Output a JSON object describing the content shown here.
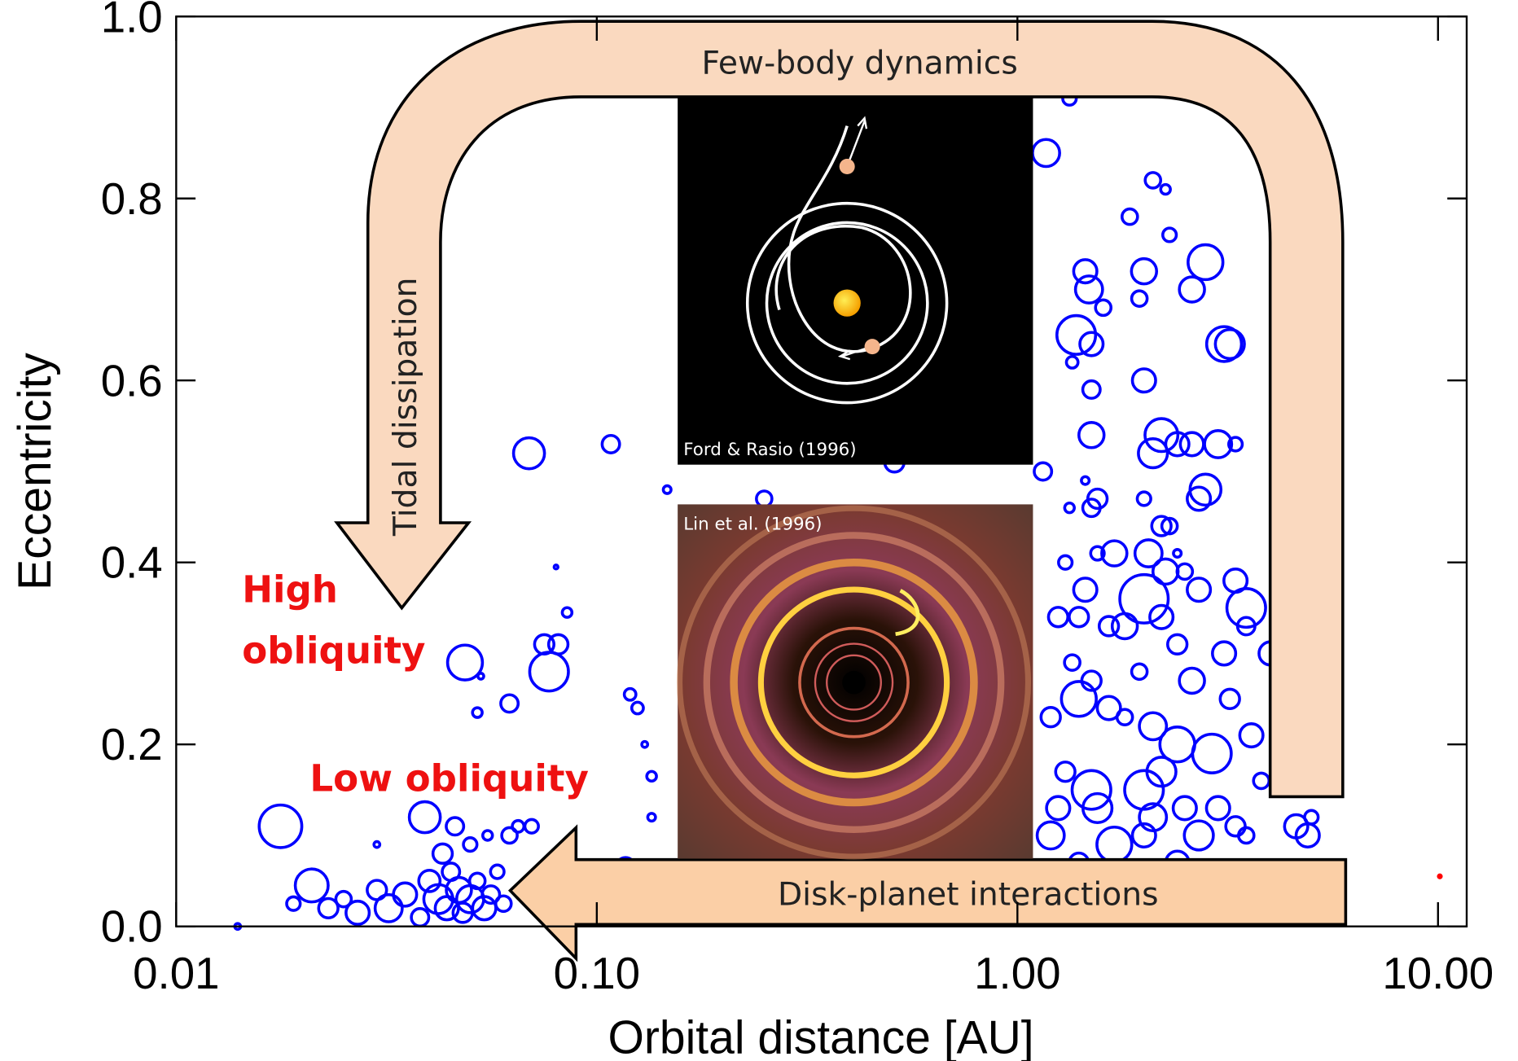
{
  "chart_data": {
    "type": "scatter",
    "xlabel": "Orbital distance [AU]",
    "ylabel": "Eccentricity",
    "xscale": "log",
    "xlim": [
      0.01,
      11.7
    ],
    "ylim": [
      0,
      1
    ],
    "xticks": [
      0.01,
      {
        "value": 0.1,
        "label": "0.10"
      },
      {
        "value": 1,
        "label": "1.00"
      },
      {
        "value": 10,
        "label": "10.00"
      }
    ],
    "yticks": [
      {
        "value": 0,
        "label": "0.0"
      },
      0.2,
      0.4,
      0.6,
      0.8,
      {
        "value": 1,
        "label": "1.0"
      }
    ],
    "series": [
      {
        "color": "#0000ff",
        "x": [
          0.0177,
          0.021,
          0.019,
          0.023,
          0.025,
          0.027,
          0.03,
          0.032,
          0.035,
          0.038,
          0.04,
          0.042,
          0.044,
          0.045,
          0.047,
          0.048,
          0.05,
          0.052,
          0.054,
          0.056,
          0.058,
          0.06,
          0.043,
          0.05,
          0.046,
          0.055,
          0.065,
          0.07,
          0.062,
          0.039,
          0.03,
          0.014,
          0.0486,
          0.052,
          0.053,
          0.077,
          0.075,
          0.081,
          0.062,
          0.085,
          0.08,
          0.069,
          0.108,
          0.147,
          0.12,
          0.125,
          0.13,
          0.135,
          0.135,
          0.117,
          0.25,
          0.51,
          1.17,
          1.33,
          2.1,
          2.25,
          1.85,
          2.3,
          2.0,
          2.8,
          2.6,
          1.6,
          1.95,
          1.45,
          1.48,
          1.38,
          1.5,
          1.35,
          1.5,
          2.0,
          3.1,
          3.2,
          1.5,
          2.2,
          2.4,
          2.6,
          3.0,
          2.1,
          3.3,
          1.15,
          1.45,
          1.55,
          1.5,
          2.0,
          2.8,
          2.7,
          1.33,
          2.2,
          2.3,
          1.7,
          1.3,
          1.55,
          2.05,
          2.25,
          2.5,
          2.4,
          3.3,
          1.45,
          2.0,
          1.25,
          1.8,
          2.2,
          1.4,
          2.7,
          3.5,
          3.5,
          1.65,
          1.35,
          1.5,
          1.95,
          2.6,
          2.4,
          3.1,
          1.2,
          1.4,
          1.65,
          1.8,
          2.1,
          2.4,
          2.9,
          3.6,
          3.2,
          1.3,
          1.5,
          1.55,
          1.25,
          2.2,
          2.0,
          2.1,
          2.5,
          2.7,
          3.0,
          3.3,
          1.2,
          1.4,
          1.7,
          2.0,
          2.4,
          3.5,
          1.25,
          1.45,
          2.2,
          4.6,
          4.9,
          5.0,
          3.8,
          4.0,
          4.2
        ],
        "values": [
          0.11,
          0.045,
          0.025,
          0.02,
          0.03,
          0.015,
          0.04,
          0.02,
          0.035,
          0.01,
          0.05,
          0.03,
          0.02,
          0.06,
          0.04,
          0.015,
          0.03,
          0.05,
          0.02,
          0.035,
          0.06,
          0.025,
          0.08,
          0.09,
          0.11,
          0.1,
          0.11,
          0.11,
          0.1,
          0.12,
          0.09,
          0.0,
          0.29,
          0.235,
          0.275,
          0.28,
          0.31,
          0.31,
          0.245,
          0.345,
          0.395,
          0.52,
          0.53,
          0.48,
          0.255,
          0.24,
          0.2,
          0.165,
          0.12,
          0.065,
          0.47,
          0.51,
          0.85,
          0.91,
          0.82,
          0.81,
          0.78,
          0.76,
          0.72,
          0.73,
          0.7,
          0.68,
          0.69,
          0.72,
          0.7,
          0.65,
          0.64,
          0.62,
          0.59,
          0.6,
          0.64,
          0.64,
          0.54,
          0.54,
          0.53,
          0.53,
          0.53,
          0.52,
          0.53,
          0.5,
          0.49,
          0.47,
          0.46,
          0.47,
          0.48,
          0.47,
          0.46,
          0.44,
          0.44,
          0.41,
          0.4,
          0.41,
          0.41,
          0.39,
          0.39,
          0.41,
          0.38,
          0.37,
          0.36,
          0.34,
          0.33,
          0.34,
          0.34,
          0.37,
          0.35,
          0.33,
          0.33,
          0.29,
          0.27,
          0.28,
          0.27,
          0.31,
          0.3,
          0.23,
          0.25,
          0.24,
          0.23,
          0.22,
          0.2,
          0.19,
          0.21,
          0.25,
          0.17,
          0.15,
          0.13,
          0.13,
          0.17,
          0.15,
          0.12,
          0.13,
          0.1,
          0.13,
          0.11,
          0.1,
          0.07,
          0.09,
          0.1,
          0.07,
          0.1,
          0.05,
          0.04,
          0.05,
          0.11,
          0.1,
          0.12,
          0.16,
          0.3,
          0.22
        ],
        "sizes": [
          22,
          17,
          7,
          10,
          8,
          12,
          10,
          14,
          12,
          9,
          11,
          15,
          12,
          9,
          13,
          10,
          14,
          8,
          12,
          9,
          7,
          8,
          10,
          7,
          9,
          5,
          6,
          7,
          8,
          16,
          3,
          3,
          18,
          5,
          3,
          20,
          10,
          10,
          9,
          5,
          2,
          16,
          9,
          4,
          6,
          6,
          3,
          5,
          4,
          10,
          8,
          10,
          14,
          7,
          8,
          5,
          8,
          7,
          13,
          18,
          13,
          8,
          8,
          12,
          14,
          20,
          12,
          6,
          9,
          12,
          18,
          15,
          13,
          17,
          12,
          12,
          14,
          15,
          7,
          9,
          4,
          10,
          9,
          7,
          16,
          12,
          5,
          10,
          8,
          13,
          7,
          7,
          14,
          13,
          8,
          4,
          12,
          12,
          25,
          10,
          13,
          12,
          10,
          12,
          20,
          9,
          10,
          8,
          10,
          8,
          13,
          10,
          12,
          10,
          18,
          12,
          8,
          14,
          18,
          20,
          12,
          10,
          10,
          20,
          15,
          12,
          15,
          20,
          14,
          12,
          15,
          12,
          10,
          14,
          10,
          18,
          12,
          12,
          8,
          12,
          8,
          10,
          12,
          12,
          7,
          8,
          12,
          9
        ]
      },
      {
        "color": "#ff0000",
        "x": [
          10.1
        ],
        "values": [
          0.055
        ],
        "sizes": [
          3
        ]
      }
    ],
    "annotations": {
      "top_arrow": "Few-body dynamics",
      "left_arrow": "Tidal dissipation",
      "bottom_arrow": "Disk-planet interactions",
      "high_obliquity": [
        "High",
        "obliquity"
      ],
      "low_obliquity": "Low obliquity",
      "inset_top_credit": "Ford & Rasio (1996)",
      "inset_bottom_credit": "Lin et al. (1996)"
    }
  }
}
